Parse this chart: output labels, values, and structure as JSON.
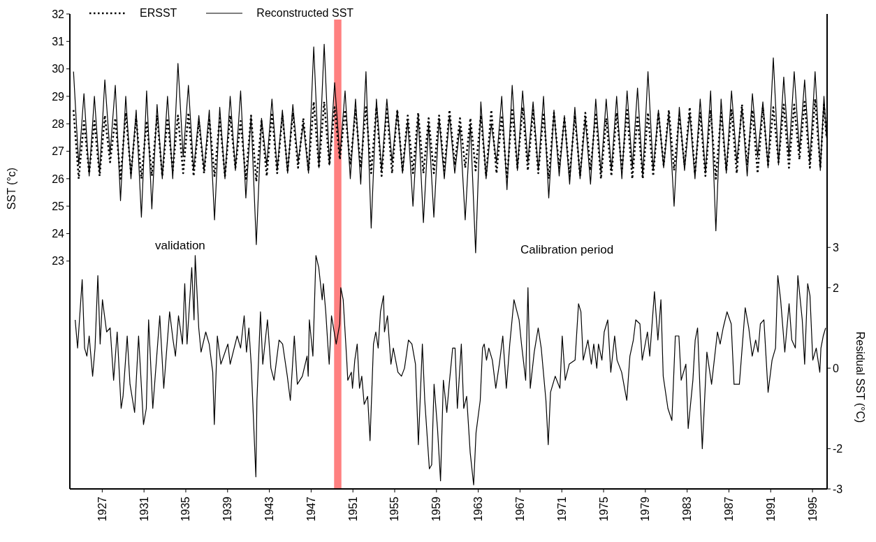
{
  "chart_data": {
    "type": "line",
    "ylabel": "SST (°c)",
    "y2label": "Residual SST (°C)",
    "annotations": [
      "validation",
      "Calibration period"
    ],
    "xlim": [
      1923.9,
      1996.4
    ],
    "xticks": [
      1927,
      1931,
      1935,
      1939,
      1943,
      1947,
      1951,
      1955,
      1959,
      1963,
      1967,
      1971,
      1975,
      1979,
      1983,
      1987,
      1991,
      1995
    ],
    "ylim": [
      14.7,
      32
    ],
    "yticks": [
      23,
      24,
      25,
      26,
      27,
      28,
      29,
      30,
      31,
      32
    ],
    "y2lim": [
      -3,
      8.8
    ],
    "y2ticks": [
      -3,
      -2,
      0,
      2,
      3
    ],
    "legend": "top left",
    "bands": [
      {
        "axis": "x",
        "from": 1949.2,
        "to": 1949.9,
        "color": "#ff8080"
      }
    ],
    "series": [
      {
        "name": "ERSST",
        "color": "#000000",
        "line_style": "dotted",
        "x": [
          1924.25,
          1924.75,
          1925.25,
          1925.75,
          1926.25,
          1926.75,
          1927.25,
          1927.75,
          1928.25,
          1928.75,
          1929.25,
          1929.75,
          1930.25,
          1930.75,
          1931.25,
          1931.75,
          1932.25,
          1932.75,
          1933.25,
          1933.75,
          1934.25,
          1934.75,
          1935.25,
          1935.75,
          1936.25,
          1936.75,
          1937.25,
          1937.75,
          1938.25,
          1938.75,
          1939.25,
          1939.75,
          1940.25,
          1940.75,
          1941.25,
          1941.75,
          1942.25,
          1942.75,
          1943.25,
          1943.75,
          1944.25,
          1944.75,
          1945.25,
          1945.75,
          1946.25,
          1946.75,
          1947.25,
          1947.75,
          1948.25,
          1948.75,
          1949.25,
          1949.75,
          1950.25,
          1950.75,
          1951.25,
          1951.75,
          1952.25,
          1952.75,
          1953.25,
          1953.75,
          1954.25,
          1954.75,
          1955.25,
          1955.75,
          1956.25,
          1956.75,
          1957.25,
          1957.75,
          1958.25,
          1958.75,
          1959.25,
          1959.75,
          1960.25,
          1960.75,
          1961.25,
          1961.75,
          1962.25,
          1962.75,
          1963.25,
          1963.75,
          1964.25,
          1964.75,
          1965.25,
          1965.75,
          1966.25,
          1966.75,
          1967.25,
          1967.75,
          1968.25,
          1968.75,
          1969.25,
          1969.75,
          1970.25,
          1970.75,
          1971.25,
          1971.75,
          1972.25,
          1972.75,
          1973.25,
          1973.75,
          1974.25,
          1974.75,
          1975.25,
          1975.75,
          1976.25,
          1976.75,
          1977.25,
          1977.75,
          1978.25,
          1978.75,
          1979.25,
          1979.75,
          1980.25,
          1980.75,
          1981.25,
          1981.75,
          1982.25,
          1982.75,
          1983.25,
          1983.75,
          1984.25,
          1984.75,
          1985.25,
          1985.75,
          1986.25,
          1986.75,
          1987.25,
          1987.75,
          1988.25,
          1988.75,
          1989.25,
          1989.75,
          1990.25,
          1990.75,
          1991.25,
          1991.75,
          1992.25,
          1992.75,
          1993.25,
          1993.75,
          1994.25,
          1994.75,
          1995.25,
          1995.75,
          1996.1,
          1996.35
        ],
        "values": [
          28.5,
          26.0,
          28.1,
          26.2,
          28.1,
          26.1,
          28.3,
          26.6,
          28.2,
          26.0,
          28.4,
          26.2,
          28.2,
          26.0,
          28.1,
          26.1,
          28.3,
          26.1,
          28.2,
          26.3,
          28.3,
          26.2,
          28.4,
          26.1,
          28.1,
          26.2,
          28.2,
          26.1,
          28.2,
          26.1,
          28.3,
          26.4,
          28.1,
          26.0,
          28.3,
          25.9,
          28.1,
          26.1,
          28.4,
          26.2,
          28.3,
          26.3,
          28.4,
          26.4,
          28.2,
          26.3,
          28.8,
          26.4,
          28.8,
          26.5,
          28.6,
          26.7,
          28.5,
          26.5,
          28.5,
          26.4,
          28.6,
          26.2,
          28.6,
          26.1,
          28.6,
          26.2,
          28.5,
          26.3,
          28.3,
          26.2,
          28.4,
          26.2,
          28.2,
          26.2,
          28.3,
          26.3,
          28.5,
          26.5,
          28.2,
          26.4,
          28.2,
          26.3,
          28.3,
          26.1,
          28.5,
          26.2,
          28.3,
          26.0,
          28.5,
          26.4,
          28.6,
          26.3,
          28.5,
          26.2,
          28.4,
          26.0,
          28.4,
          26.4,
          28.2,
          26.1,
          28.3,
          26.1,
          28.4,
          26.3,
          28.4,
          26.0,
          28.2,
          26.1,
          28.4,
          26.3,
          28.5,
          26.0,
          28.3,
          26.0,
          28.4,
          26.1,
          28.4,
          26.5,
          28.5,
          26.3,
          28.3,
          26.5,
          28.6,
          26.2,
          28.4,
          26.1,
          28.5,
          26.0,
          28.4,
          26.3,
          28.5,
          26.2,
          28.7,
          26.5,
          28.5,
          26.2,
          28.6,
          26.5,
          28.6,
          26.6,
          28.7,
          26.4,
          28.7,
          26.7,
          28.8,
          26.4,
          28.9,
          26.4,
          28.7,
          27.5
        ]
      },
      {
        "name": "Reconstructed SST",
        "color": "#000000",
        "line_style": "solid",
        "x": [
          1924.25,
          1924.75,
          1925.25,
          1925.75,
          1926.25,
          1926.75,
          1927.25,
          1927.75,
          1928.25,
          1928.75,
          1929.25,
          1929.75,
          1930.25,
          1930.75,
          1931.25,
          1931.75,
          1932.25,
          1932.75,
          1933.25,
          1933.75,
          1934.25,
          1934.75,
          1935.25,
          1935.75,
          1936.25,
          1936.75,
          1937.25,
          1937.75,
          1938.25,
          1938.75,
          1939.25,
          1939.75,
          1940.25,
          1940.75,
          1941.25,
          1941.75,
          1942.25,
          1942.75,
          1943.25,
          1943.75,
          1944.25,
          1944.75,
          1945.25,
          1945.75,
          1946.25,
          1946.75,
          1947.25,
          1947.75,
          1948.25,
          1948.75,
          1949.25,
          1949.75,
          1950.25,
          1950.75,
          1951.25,
          1951.75,
          1952.25,
          1952.75,
          1953.25,
          1953.75,
          1954.25,
          1954.75,
          1955.25,
          1955.75,
          1956.25,
          1956.75,
          1957.25,
          1957.75,
          1958.25,
          1958.75,
          1959.25,
          1959.75,
          1960.25,
          1960.75,
          1961.25,
          1961.75,
          1962.25,
          1962.75,
          1963.25,
          1963.75,
          1964.25,
          1964.75,
          1965.25,
          1965.75,
          1966.25,
          1966.75,
          1967.25,
          1967.75,
          1968.25,
          1968.75,
          1969.25,
          1969.75,
          1970.25,
          1970.75,
          1971.25,
          1971.75,
          1972.25,
          1972.75,
          1973.25,
          1973.75,
          1974.25,
          1974.75,
          1975.25,
          1975.75,
          1976.25,
          1976.75,
          1977.25,
          1977.75,
          1978.25,
          1978.75,
          1979.25,
          1979.75,
          1980.25,
          1980.75,
          1981.25,
          1981.75,
          1982.25,
          1982.75,
          1983.25,
          1983.75,
          1984.25,
          1984.75,
          1985.25,
          1985.75,
          1986.25,
          1986.75,
          1987.25,
          1987.75,
          1988.25,
          1988.75,
          1989.25,
          1989.75,
          1990.25,
          1990.75,
          1991.25,
          1991.75,
          1992.25,
          1992.75,
          1993.25,
          1993.75,
          1994.25,
          1994.75,
          1995.25,
          1995.75,
          1996.1,
          1996.35
        ],
        "values": [
          29.9,
          26.5,
          29.1,
          26.1,
          29.0,
          26.2,
          29.6,
          26.9,
          29.4,
          25.2,
          29.0,
          26.0,
          28.5,
          24.6,
          29.2,
          24.9,
          28.7,
          26.0,
          29.0,
          26.0,
          30.2,
          26.8,
          29.4,
          26.3,
          28.3,
          26.3,
          28.5,
          24.5,
          28.6,
          26.0,
          29.0,
          26.3,
          29.2,
          25.3,
          28.3,
          23.6,
          28.2,
          26.5,
          28.9,
          26.3,
          28.5,
          26.2,
          28.7,
          26.6,
          28.0,
          26.2,
          30.8,
          26.4,
          30.9,
          26.5,
          29.5,
          26.8,
          29.2,
          26.0,
          28.9,
          25.8,
          29.9,
          24.2,
          28.9,
          26.3,
          28.9,
          26.6,
          28.5,
          26.2,
          28.1,
          25.0,
          28.3,
          24.4,
          28.0,
          24.6,
          28.2,
          26.0,
          28.3,
          26.2,
          27.9,
          24.5,
          28.0,
          23.3,
          28.8,
          26.0,
          28.0,
          26.6,
          29.0,
          25.6,
          29.4,
          26.3,
          29.2,
          26.6,
          28.8,
          26.3,
          29.0,
          25.3,
          28.5,
          26.1,
          28.3,
          25.8,
          28.6,
          26.0,
          28.2,
          25.8,
          28.9,
          26.2,
          28.9,
          26.3,
          29.0,
          26.0,
          29.2,
          26.4,
          29.3,
          26.1,
          29.9,
          26.3,
          28.5,
          26.4,
          28.4,
          25.0,
          28.6,
          26.3,
          28.4,
          26.0,
          28.9,
          26.2,
          29.2,
          24.1,
          28.9,
          26.2,
          29.2,
          26.6,
          28.6,
          26.1,
          29.1,
          26.8,
          28.8,
          26.4,
          30.4,
          26.5,
          29.7,
          26.8,
          29.9,
          27.0,
          29.6,
          26.6,
          29.9,
          26.3,
          29.0,
          27.5
        ]
      },
      {
        "color": "#000000",
        "line_style": "solid",
        "axis": "y2",
        "x": [
          1924.41,
          1924.64,
          1925.08,
          1925.31,
          1925.53,
          1925.75,
          1926.08,
          1926.31,
          1926.58,
          1926.8,
          1927.02,
          1927.42,
          1927.76,
          1928.09,
          1928.43,
          1928.81,
          1928.99,
          1929.39,
          1929.66,
          1930.1,
          1930.48,
          1930.95,
          1931.22,
          1931.44,
          1931.84,
          1932.51,
          1932.89,
          1933.45,
          1933.78,
          1934.01,
          1934.3,
          1934.68,
          1934.9,
          1935.12,
          1935.57,
          1935.79,
          1935.9,
          1936.24,
          1936.46,
          1936.91,
          1937.24,
          1937.58,
          1937.73,
          1938.02,
          1938.36,
          1939.03,
          1939.25,
          1939.92,
          1940.25,
          1940.59,
          1940.81,
          1941.04,
          1941.26,
          1941.71,
          1941.81,
          1942.15,
          1942.37,
          1942.82,
          1943.15,
          1943.45,
          1943.93,
          1944.27,
          1944.72,
          1945.01,
          1945.39,
          1945.68,
          1946.16,
          1946.61,
          1946.72,
          1946.83,
          1947.17,
          1947.46,
          1947.73,
          1948.06,
          1948.17,
          1948.4,
          1948.62,
          1948.73,
          1948.95,
          1949.4,
          1949.74,
          1949.84,
          1950.07,
          1950.41,
          1950.51,
          1950.85,
          1950.96,
          1951.18,
          1951.41,
          1951.63,
          1951.85,
          1952.08,
          1952.41,
          1952.64,
          1952.97,
          1953.19,
          1953.42,
          1953.64,
          1953.93,
          1954.02,
          1954.31,
          1954.64,
          1954.87,
          1955.31,
          1955.65,
          1955.94,
          1956.32,
          1956.65,
          1956.99,
          1957.27,
          1957.65,
          1957.88,
          1958.32,
          1958.54,
          1958.77,
          1959.1,
          1959.39,
          1959.66,
          1959.99,
          1960.22,
          1960.55,
          1960.78,
          1961.0,
          1961.38,
          1961.61,
          1961.89,
          1962.23,
          1962.56,
          1962.79,
          1963.19,
          1963.41,
          1963.57,
          1963.79,
          1964.01,
          1964.35,
          1964.68,
          1965.02,
          1965.35,
          1965.69,
          1966.02,
          1966.42,
          1966.91,
          1967.14,
          1967.54,
          1967.76,
          1967.98,
          1968.36,
          1968.74,
          1969.03,
          1969.48,
          1969.7,
          1969.92,
          1970.37,
          1970.82,
          1971.04,
          1971.33,
          1971.71,
          1972.27,
          1972.6,
          1972.83,
          1973.05,
          1973.5,
          1973.83,
          1974.06,
          1974.35,
          1974.51,
          1974.84,
          1975.06,
          1975.4,
          1975.69,
          1976.06,
          1976.29,
          1976.73,
          1977.22,
          1977.52,
          1977.85,
          1978.08,
          1978.48,
          1978.7,
          1979.2,
          1979.42,
          1979.87,
          1980.2,
          1980.49,
          1980.71,
          1981.16,
          1981.54,
          1981.87,
          1982.21,
          1982.43,
          1982.88,
          1983.1,
          1983.55,
          1983.77,
          1984.0,
          1984.45,
          1984.89,
          1985.34,
          1985.9,
          1986.16,
          1986.45,
          1986.82,
          1987.22,
          1987.49,
          1988.0,
          1988.56,
          1988.9,
          1989.23,
          1989.56,
          1989.79,
          1990.01,
          1990.35,
          1990.75,
          1991.13,
          1991.46,
          1991.68,
          1991.95,
          1992.35,
          1992.76,
          1993.02,
          1993.36,
          1993.6,
          1994.02,
          1994.25,
          1994.54,
          1994.76,
          1995.03,
          1995.36,
          1995.7,
          1995.81,
          1996.03,
          1996.26
        ],
        "values": [
          1.2,
          0.5,
          2.2,
          0.5,
          0.3,
          0.8,
          -0.2,
          0.5,
          2.3,
          0.6,
          1.7,
          0.9,
          1.0,
          -0.3,
          0.9,
          -1.0,
          -0.7,
          0.8,
          -0.4,
          -1.1,
          0.8,
          -1.4,
          -1.0,
          1.2,
          -1.0,
          1.3,
          -0.5,
          1.4,
          0.7,
          0.3,
          1.3,
          0.6,
          2.1,
          0.6,
          2.5,
          1.2,
          2.8,
          1.0,
          0.4,
          0.9,
          0.6,
          -0.1,
          -1.4,
          0.8,
          0.1,
          0.6,
          0.1,
          0.8,
          0.5,
          1.3,
          0.4,
          1.0,
          0.1,
          -2.7,
          -0.8,
          1.4,
          0.1,
          1.2,
          0.0,
          -0.3,
          0.7,
          0.6,
          -0.2,
          -0.8,
          0.8,
          -0.4,
          -0.2,
          0.3,
          -0.2,
          1.2,
          0.3,
          2.8,
          2.5,
          1.7,
          2.1,
          1.4,
          0.5,
          0.1,
          1.3,
          0.6,
          1.1,
          2.0,
          1.7,
          0.2,
          -0.3,
          -0.1,
          -0.5,
          0.2,
          0.6,
          -0.5,
          -0.2,
          -0.9,
          -0.7,
          -1.8,
          0.6,
          0.9,
          0.5,
          1.4,
          1.8,
          0.9,
          1.3,
          0.1,
          0.5,
          -0.1,
          -0.2,
          0.0,
          0.7,
          0.6,
          0.1,
          -1.9,
          0.6,
          -0.8,
          -2.5,
          -2.4,
          -0.4,
          -1.5,
          -2.8,
          -0.3,
          -1.1,
          -0.4,
          0.5,
          0.5,
          -1.0,
          0.6,
          -1.0,
          -0.7,
          -2.1,
          -2.9,
          -1.6,
          -0.8,
          0.5,
          0.6,
          0.2,
          0.5,
          0.2,
          -0.5,
          0.1,
          0.8,
          -0.5,
          0.6,
          1.7,
          1.2,
          0.6,
          -0.3,
          2.0,
          -0.5,
          0.4,
          1.0,
          0.5,
          -0.8,
          -1.9,
          -0.6,
          -0.2,
          -0.5,
          0.8,
          -0.3,
          0.1,
          0.2,
          1.6,
          1.4,
          0.2,
          0.7,
          0.1,
          0.6,
          0.0,
          0.6,
          0.2,
          0.9,
          1.2,
          -0.1,
          0.8,
          0.2,
          -0.1,
          -0.8,
          0.3,
          0.7,
          1.2,
          1.1,
          0.2,
          0.9,
          0.3,
          1.9,
          0.7,
          1.7,
          -0.2,
          -1.0,
          -1.3,
          0.8,
          0.8,
          -0.3,
          0.1,
          -1.5,
          -0.3,
          0.7,
          1.0,
          -2.0,
          0.4,
          -0.4,
          0.9,
          0.6,
          1.0,
          1.4,
          1.1,
          -0.4,
          -0.4,
          1.5,
          1.0,
          0.3,
          0.7,
          0.4,
          1.1,
          1.2,
          -0.6,
          0.2,
          0.5,
          2.3,
          1.7,
          0.4,
          1.6,
          0.7,
          0.5,
          2.3,
          1.2,
          0.1,
          2.1,
          1.8,
          0.2,
          0.5,
          -0.1,
          0.5,
          0.8,
          1.0
        ]
      }
    ]
  }
}
